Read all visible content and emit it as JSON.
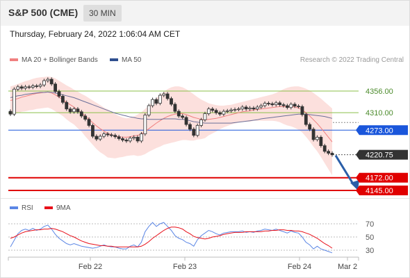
{
  "header": {
    "title": "S&P 500 (CME)",
    "interval": "30 MIN"
  },
  "datetime": "Thursday, February 24, 2022 1:06:04 AM CET",
  "credit": "Research © 2022 Trading Central",
  "legend": {
    "bb": {
      "label": "MA 20 + Bollinger Bands",
      "color": "#f08080"
    },
    "ma50": {
      "label": "MA 50",
      "color": "#2f4f8f"
    },
    "rsi": {
      "label": "RSI",
      "color": "#5b86e5"
    },
    "rsi_ma": {
      "label": "9MA",
      "color": "#e8101a"
    }
  },
  "chart_data": [
    {
      "type": "candlestick",
      "levels": [
        {
          "value": 4356.0,
          "label": "4356.00",
          "color": "#8bbf4a",
          "kind": "resistance"
        },
        {
          "value": 4310.0,
          "label": "4310.00",
          "color": "#8bbf4a",
          "kind": "resistance"
        },
        {
          "value": 4273.0,
          "label": "4273.00",
          "color": "#1a56db",
          "kind": "pivot"
        },
        {
          "value": 4220.75,
          "label": "4220.75",
          "color": "#333333",
          "kind": "last"
        },
        {
          "value": 4172.0,
          "label": "4172.00",
          "color": "#e00000",
          "kind": "support"
        },
        {
          "value": 4145.0,
          "label": "4145.00",
          "color": "#e00000",
          "kind": "support"
        }
      ],
      "x_ticks": [
        "Feb 22",
        "Feb 23",
        "Feb 24",
        "Mar 2"
      ],
      "close": [
        4307,
        4360,
        4365,
        4362,
        4365,
        4364,
        4367,
        4366,
        4369,
        4378,
        4381,
        4371,
        4355,
        4345,
        4332,
        4318,
        4312,
        4318,
        4312,
        4303,
        4296,
        4283,
        4260,
        4254,
        4260,
        4265,
        4263,
        4262,
        4259,
        4255,
        4252,
        4250,
        4256,
        4258,
        4250,
        4265,
        4305,
        4325,
        4338,
        4330,
        4347,
        4350,
        4340,
        4328,
        4313,
        4303,
        4300,
        4285,
        4275,
        4262,
        4283,
        4295,
        4308,
        4318,
        4315,
        4310,
        4307,
        4313,
        4314,
        4316,
        4317,
        4318,
        4322,
        4318,
        4320,
        4318,
        4322,
        4325,
        4330,
        4329,
        4327,
        4331,
        4327,
        4325,
        4321,
        4328,
        4324,
        4323,
        4306,
        4285,
        4275,
        4253,
        4258,
        4240,
        4228,
        4224,
        4220.75
      ],
      "ma20": [
        4336,
        4338,
        4340,
        4343,
        4345,
        4347,
        4349,
        4351,
        4352,
        4353,
        4354,
        4352,
        4348,
        4343,
        4338,
        4332,
        4327,
        4322,
        4316,
        4310,
        4303,
        4296,
        4289,
        4282,
        4276,
        4271,
        4266,
        4263,
        4260,
        4259,
        4258,
        4258,
        4259,
        4261,
        4262,
        4265,
        4270,
        4276,
        4282,
        4288,
        4293,
        4298,
        4302,
        4305,
        4307,
        4308,
        4308,
        4306,
        4303,
        4300,
        4298,
        4296,
        4295,
        4296,
        4297,
        4298,
        4300,
        4302,
        4304,
        4306,
        4308,
        4310,
        4312,
        4313,
        4314,
        4316,
        4317,
        4318,
        4319,
        4320,
        4321,
        4322,
        4323,
        4323,
        4323,
        4323,
        4322,
        4320,
        4316,
        4310,
        4303,
        4295,
        4287,
        4278,
        4268,
        4258,
        4248
      ],
      "bb_upper": [
        4366,
        4368,
        4371,
        4374,
        4377,
        4379,
        4382,
        4384,
        4385,
        4386,
        4387,
        4386,
        4383,
        4378,
        4373,
        4368,
        4364,
        4359,
        4355,
        4350,
        4346,
        4341,
        4336,
        4331,
        4326,
        4321,
        4317,
        4312,
        4307,
        4303,
        4300,
        4298,
        4299,
        4302,
        4306,
        4311,
        4318,
        4325,
        4333,
        4341,
        4348,
        4354,
        4360,
        4364,
        4366,
        4366,
        4364,
        4360,
        4355,
        4349,
        4343,
        4338,
        4334,
        4330,
        4328,
        4326,
        4325,
        4325,
        4326,
        4327,
        4329,
        4331,
        4333,
        4335,
        4337,
        4339,
        4341,
        4343,
        4345,
        4347,
        4349,
        4352,
        4356,
        4360,
        4363,
        4365,
        4366,
        4366,
        4364,
        4361,
        4357,
        4352,
        4346,
        4340,
        4333,
        4326,
        4319
      ],
      "bb_lower": [
        4306,
        4308,
        4309,
        4312,
        4313,
        4315,
        4316,
        4318,
        4319,
        4320,
        4321,
        4318,
        4313,
        4308,
        4303,
        4296,
        4290,
        4285,
        4277,
        4270,
        4260,
        4251,
        4242,
        4233,
        4226,
        4221,
        4215,
        4214,
        4213,
        4215,
        4216,
        4218,
        4219,
        4220,
        4218,
        4219,
        4222,
        4227,
        4231,
        4235,
        4238,
        4242,
        4244,
        4246,
        4248,
        4250,
        4252,
        4252,
        4251,
        4251,
        4253,
        4254,
        4256,
        4262,
        4266,
        4270,
        4275,
        4279,
        4282,
        4285,
        4287,
        4289,
        4291,
        4291,
        4291,
        4293,
        4293,
        4293,
        4293,
        4293,
        4293,
        4292,
        4290,
        4286,
        4283,
        4281,
        4278,
        4274,
        4268,
        4259,
        4249,
        4238,
        4228,
        4216,
        4203,
        4190,
        4177
      ],
      "ma50": [
        4342,
        4344,
        4346,
        4347,
        4349,
        4350,
        4351,
        4352,
        4353,
        4353,
        4354,
        4353,
        4352,
        4350,
        4348,
        4346,
        4344,
        4342,
        4339,
        4336,
        4333,
        4330,
        4327,
        4324,
        4321,
        4318,
        4315,
        4312,
        4309,
        4307,
        4305,
        4303,
        4301,
        4300,
        4298,
        4297,
        4297,
        4296,
        4296,
        4296,
        4296,
        4297,
        4297,
        4297,
        4297,
        4296,
        4296,
        4295,
        4293,
        4291,
        4290,
        4289,
        4288,
        4288,
        4288,
        4288,
        4288,
        4288,
        4288,
        4288,
        4289,
        4290,
        4291,
        4292,
        4293,
        4294,
        4295,
        4297,
        4298,
        4299,
        4300,
        4301,
        4302,
        4303,
        4304,
        4305,
        4306,
        4307,
        4307,
        4307,
        4306,
        4305,
        4304,
        4303,
        4302,
        4300,
        4298
      ]
    },
    {
      "type": "line",
      "title": "RSI",
      "y_ticks": [
        70,
        50,
        30
      ],
      "ylim": [
        20,
        80
      ],
      "series": [
        {
          "name": "RSI",
          "values": [
            35,
            45,
            55,
            60,
            62,
            60,
            63,
            60,
            62,
            66,
            68,
            62,
            54,
            48,
            44,
            40,
            38,
            40,
            38,
            36,
            35,
            34,
            33,
            34,
            36,
            38,
            36,
            35,
            35,
            33,
            32,
            32,
            36,
            38,
            35,
            42,
            58,
            66,
            72,
            66,
            70,
            72,
            66,
            60,
            52,
            48,
            46,
            42,
            40,
            36,
            46,
            52,
            56,
            60,
            58,
            55,
            53,
            56,
            57,
            58,
            58,
            58,
            59,
            57,
            58,
            57,
            59,
            60,
            62,
            61,
            60,
            62,
            60,
            58,
            56,
            59,
            57,
            56,
            50,
            42,
            38,
            32,
            36,
            32,
            30,
            28,
            26
          ]
        },
        {
          "name": "9MA",
          "values": [
            48,
            50,
            53,
            56,
            58,
            59,
            60,
            61,
            61,
            62,
            62,
            63,
            62,
            60,
            58,
            55,
            52,
            50,
            47,
            44,
            42,
            40,
            39,
            38,
            37,
            37,
            36,
            36,
            35,
            35,
            35,
            35,
            35,
            35,
            35,
            36,
            39,
            43,
            48,
            52,
            56,
            60,
            63,
            65,
            65,
            64,
            62,
            58,
            55,
            51,
            49,
            48,
            47,
            48,
            50,
            51,
            52,
            54,
            55,
            56,
            57,
            57,
            57,
            58,
            58,
            58,
            58,
            58,
            59,
            59,
            60,
            60,
            61,
            61,
            60,
            60,
            59,
            59,
            58,
            56,
            54,
            51,
            48,
            44,
            40,
            37,
            33
          ]
        }
      ]
    }
  ]
}
